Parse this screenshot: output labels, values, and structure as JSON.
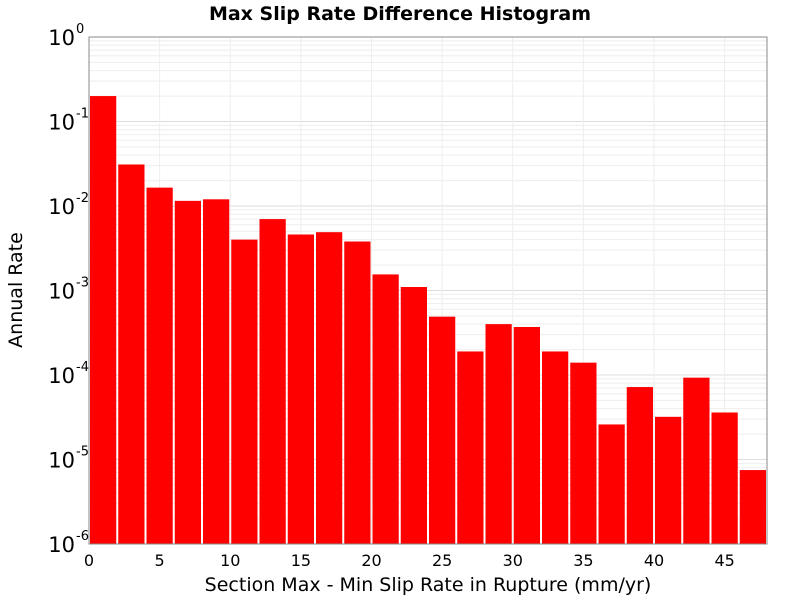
{
  "chart_data": {
    "type": "bar",
    "title": "Max Slip Rate Difference Histogram",
    "xlabel": "Section Max - Min Slip Rate in Rupture (mm/yr)",
    "ylabel": "Annual Rate",
    "y_scale": "log",
    "xlim": [
      0,
      48
    ],
    "ylim": [
      1e-06,
      1
    ],
    "x_ticks": [
      "0",
      "5",
      "10",
      "15",
      "20",
      "25",
      "30",
      "35",
      "40",
      "45"
    ],
    "y_ticks": [
      {
        "base": "10",
        "exp": "0",
        "value": 1
      },
      {
        "base": "10",
        "exp": "-1",
        "value": 0.1
      },
      {
        "base": "10",
        "exp": "-2",
        "value": 0.01
      },
      {
        "base": "10",
        "exp": "-3",
        "value": 0.001
      },
      {
        "base": "10",
        "exp": "-4",
        "value": 0.0001
      },
      {
        "base": "10",
        "exp": "-5",
        "value": 1e-05
      },
      {
        "base": "10",
        "exp": "-6",
        "value": 1e-06
      }
    ],
    "bin_width": 2,
    "bars": [
      {
        "x": 1,
        "value": 0.2
      },
      {
        "x": 3,
        "value": 0.031
      },
      {
        "x": 5,
        "value": 0.0165
      },
      {
        "x": 7,
        "value": 0.0115
      },
      {
        "x": 9,
        "value": 0.012
      },
      {
        "x": 11,
        "value": 0.004
      },
      {
        "x": 13,
        "value": 0.007
      },
      {
        "x": 15,
        "value": 0.0046
      },
      {
        "x": 17,
        "value": 0.0049
      },
      {
        "x": 19,
        "value": 0.0038
      },
      {
        "x": 21,
        "value": 0.00155
      },
      {
        "x": 23,
        "value": 0.0011
      },
      {
        "x": 25,
        "value": 0.00049
      },
      {
        "x": 27,
        "value": 0.00019
      },
      {
        "x": 29,
        "value": 0.0004
      },
      {
        "x": 31,
        "value": 0.00037
      },
      {
        "x": 33,
        "value": 0.00019
      },
      {
        "x": 35,
        "value": 0.00014
      },
      {
        "x": 37,
        "value": 2.6e-05
      },
      {
        "x": 39,
        "value": 7.2e-05
      },
      {
        "x": 41,
        "value": 3.2e-05
      },
      {
        "x": 43,
        "value": 9.3e-05
      },
      {
        "x": 45,
        "value": 3.6e-05
      },
      {
        "x": 47,
        "value": 7.5e-06
      }
    ],
    "bar_color": "#ff0000",
    "grid": true,
    "legend": "none"
  }
}
